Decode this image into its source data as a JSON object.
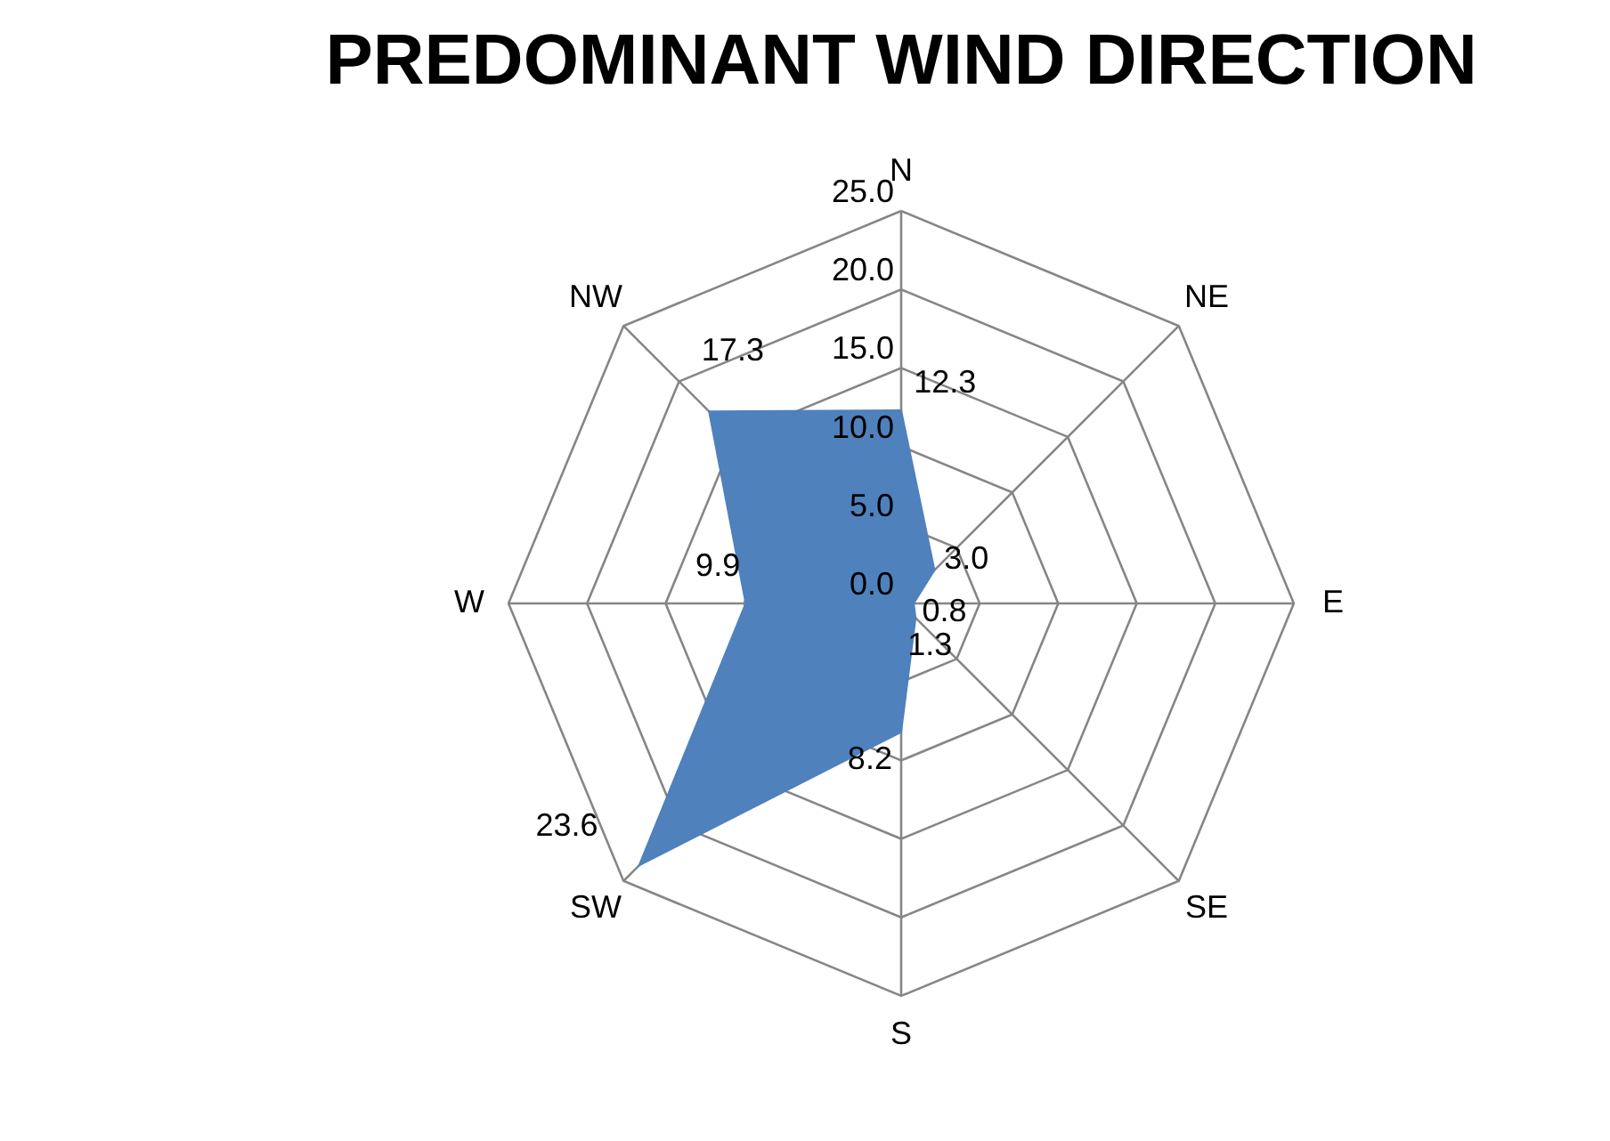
{
  "chart_data": {
    "type": "radar",
    "title": "PREDOMINANT WIND DIRECTION",
    "categories": [
      "N",
      "NE",
      "E",
      "SE",
      "S",
      "SW",
      "W",
      "NW"
    ],
    "series": [
      {
        "color": "#4f81bd",
        "values": [
          12.3,
          3.0,
          0.8,
          1.3,
          8.2,
          23.6,
          9.9,
          17.3
        ],
        "value_labels": [
          "12.3",
          "3.0",
          "0.8",
          "1.3",
          "8.2",
          "23.6",
          "9.9",
          "17.3"
        ]
      }
    ],
    "ylim": [
      0,
      25
    ],
    "yticks": [
      {
        "value": 0,
        "label": "0.0"
      },
      {
        "value": 5,
        "label": "5.0"
      },
      {
        "value": 10,
        "label": "10.0"
      },
      {
        "value": 15,
        "label": "15.0"
      },
      {
        "value": 20,
        "label": "20.0"
      },
      {
        "value": 25,
        "label": "25.0"
      }
    ],
    "grid": true
  }
}
